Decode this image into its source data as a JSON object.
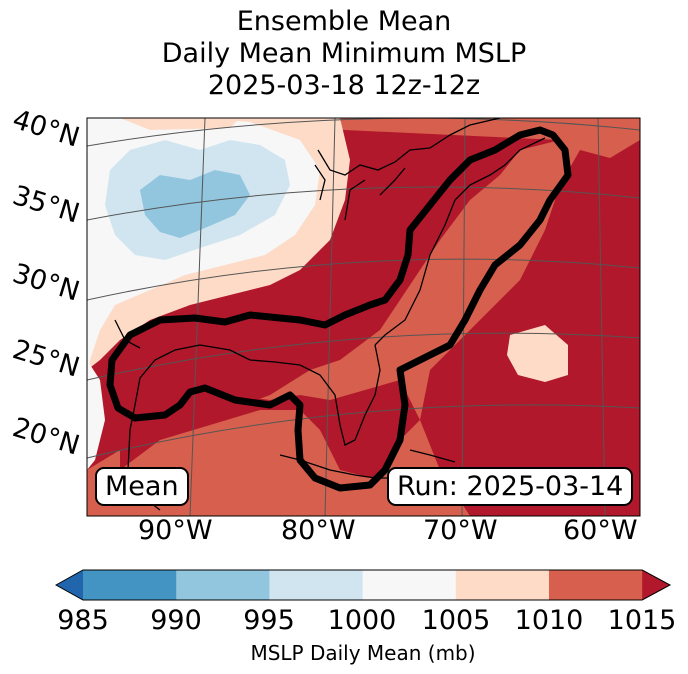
{
  "title": {
    "line1": "Ensemble Mean",
    "line2": "Daily Mean Minimum MSLP",
    "line3": "2025-03-18 12z-12z"
  },
  "map": {
    "lat_labels": [
      "40°N",
      "35°N",
      "30°N",
      "25°N",
      "20°N"
    ],
    "lon_labels": [
      "90°W",
      "80°W",
      "70°W",
      "60°W"
    ],
    "mean_box": "Mean",
    "run_box": "Run: 2025-03-14"
  },
  "colorbar": {
    "ticks": [
      "985",
      "990",
      "995",
      "1000",
      "1005",
      "1010",
      "1015"
    ],
    "label": "MSLP Daily Mean (mb)",
    "bins": [
      {
        "range": "<985",
        "color": "#2166ac"
      },
      {
        "range": "985-990",
        "color": "#4393c3"
      },
      {
        "range": "990-995",
        "color": "#92c5de"
      },
      {
        "range": "995-1000",
        "color": "#d1e5f0"
      },
      {
        "range": "1000-1005",
        "color": "#f7f7f7"
      },
      {
        "range": "1005-1010",
        "color": "#fddbc7"
      },
      {
        "range": "1010-1015",
        "color": "#d6604d"
      },
      {
        "range": ">1015",
        "color": "#b2182b"
      }
    ]
  }
}
